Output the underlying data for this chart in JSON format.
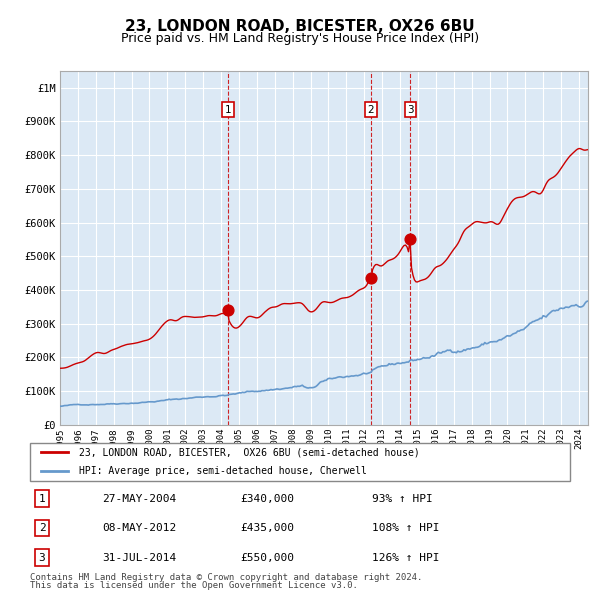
{
  "title": "23, LONDON ROAD, BICESTER, OX26 6BU",
  "subtitle": "Price paid vs. HM Land Registry's House Price Index (HPI)",
  "title_fontsize": 11,
  "subtitle_fontsize": 9,
  "ylabel_ticks": [
    "£0",
    "£100K",
    "£200K",
    "£300K",
    "£400K",
    "£500K",
    "£600K",
    "£700K",
    "£800K",
    "£900K",
    "£1M"
  ],
  "ytick_vals": [
    0,
    100000,
    200000,
    300000,
    400000,
    500000,
    600000,
    700000,
    800000,
    900000,
    1000000
  ],
  "ylim": [
    0,
    1050000
  ],
  "xlim_start": 1995.0,
  "xlim_end": 2024.5,
  "hpi_color": "#6699cc",
  "price_color": "#cc0000",
  "background_color": "#dce9f5",
  "grid_color": "#ffffff",
  "sale_dates": [
    2004.4,
    2012.36,
    2014.58
  ],
  "sale_prices": [
    340000,
    435000,
    550000
  ],
  "sale_labels": [
    "1",
    "2",
    "3"
  ],
  "legend_line1": "23, LONDON ROAD, BICESTER,  OX26 6BU (semi-detached house)",
  "legend_line2": "HPI: Average price, semi-detached house, Cherwell",
  "table_rows": [
    {
      "num": "1",
      "date": "27-MAY-2004",
      "price": "£340,000",
      "pct": "93% ↑ HPI"
    },
    {
      "num": "2",
      "date": "08-MAY-2012",
      "price": "£435,000",
      "pct": "108% ↑ HPI"
    },
    {
      "num": "3",
      "date": "31-JUL-2014",
      "price": "£550,000",
      "pct": "126% ↑ HPI"
    }
  ],
  "footer1": "Contains HM Land Registry data © Crown copyright and database right 2024.",
  "footer2": "This data is licensed under the Open Government Licence v3.0."
}
